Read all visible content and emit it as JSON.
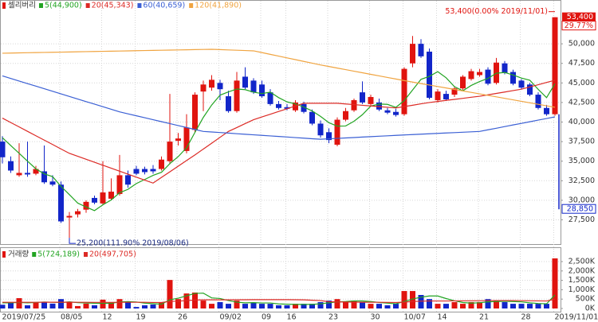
{
  "chart_data": [
    {
      "type": "candlestick",
      "name": "셀리버리",
      "up_color": "#e0140f",
      "down_color": "#1226c9",
      "open": [
        37500,
        35000,
        33200,
        33500,
        33400,
        33700,
        32400,
        32000,
        27800,
        28200,
        28800,
        30300,
        29600,
        30200,
        30800,
        33200,
        34000,
        34000,
        34000,
        34000,
        35000,
        37600,
        36300,
        39000,
        43900,
        44400,
        45000,
        43300,
        41400,
        45800,
        45300,
        44800,
        43800,
        42300,
        41900,
        41500,
        42300,
        41300,
        39800,
        38700,
        37100,
        40300,
        41500,
        43800,
        42300,
        42500,
        41500,
        41300,
        41000,
        47500,
        50000,
        49000,
        42800,
        43600,
        43500,
        44300,
        45500,
        46000,
        46700,
        45000,
        47500,
        46400,
        45300,
        44800,
        43500,
        41800,
        41000
      ],
      "high": [
        38200,
        35600,
        37300,
        37500,
        34400,
        37000,
        33200,
        32400,
        28500,
        28900,
        30000,
        30600,
        35000,
        32800,
        35800,
        33800,
        34400,
        34300,
        34500,
        35600,
        43600,
        38600,
        41000,
        43800,
        45300,
        46000,
        45400,
        44000,
        46400,
        47000,
        45600,
        45300,
        44200,
        42700,
        42300,
        42800,
        42600,
        41600,
        40200,
        39200,
        40600,
        41800,
        43000,
        45200,
        43500,
        43000,
        41800,
        41700,
        47000,
        51000,
        50600,
        49400,
        44200,
        44000,
        44500,
        46000,
        46800,
        46800,
        47000,
        48200,
        47800,
        46700,
        45500,
        45000,
        43800,
        42200,
        53400
      ],
      "low": [
        34700,
        33500,
        33000,
        33000,
        33200,
        32100,
        31800,
        27100,
        25200,
        27800,
        28400,
        29500,
        29400,
        30000,
        30600,
        31600,
        33200,
        33300,
        33400,
        33800,
        34600,
        37000,
        36000,
        38700,
        41400,
        44000,
        42800,
        41200,
        41200,
        44200,
        43600,
        43100,
        42100,
        41600,
        41500,
        41300,
        41100,
        39600,
        38000,
        37300,
        36900,
        40100,
        41300,
        42300,
        42100,
        41400,
        41000,
        40700,
        40800,
        47000,
        48200,
        42900,
        42500,
        42700,
        43200,
        44100,
        45300,
        45800,
        44700,
        44800,
        46100,
        44700,
        44200,
        43300,
        41600,
        40800,
        40800
      ],
      "close": [
        35500,
        33800,
        33500,
        33300,
        34000,
        32300,
        32000,
        27300,
        28000,
        28600,
        29800,
        29700,
        31000,
        31100,
        33200,
        32000,
        33400,
        33600,
        33700,
        35200,
        37500,
        37900,
        39300,
        43500,
        44800,
        45400,
        44200,
        41400,
        45300,
        44400,
        43800,
        43300,
        42300,
        41800,
        41700,
        42500,
        41300,
        39800,
        38300,
        37700,
        40300,
        41400,
        42800,
        42500,
        43200,
        41600,
        41200,
        40900,
        46800,
        50000,
        48400,
        43100,
        43900,
        42900,
        44300,
        45800,
        46500,
        46400,
        44900,
        47600,
        46300,
        44900,
        44400,
        43500,
        41800,
        41000,
        53400
      ],
      "series": [
        {
          "name": "5(44,900)",
          "color": "#22a422",
          "values": [
            38000,
            37000,
            36000,
            35000,
            34020,
            33380,
            33020,
            31780,
            30720,
            29640,
            29140,
            28680,
            29420,
            30040,
            30960,
            31400,
            32140,
            32660,
            33180,
            33580,
            34680,
            35580,
            36720,
            38680,
            40600,
            42180,
            43440,
            43860,
            44220,
            44140,
            43820,
            43640,
            43820,
            43120,
            42580,
            42320,
            41920,
            41420,
            40720,
            39920,
            39480,
            39500,
            40100,
            40940,
            42040,
            42300,
            42260,
            41880,
            42740,
            44100,
            45460,
            45840,
            46440,
            45660,
            44520,
            44000,
            44680,
            45180,
            45580,
            46240,
            46340,
            46020,
            45620,
            45340,
            44180,
            43120,
            44900
          ]
        },
        {
          "name": "20(45,343)",
          "color": "#dc2a25",
          "values": [
            40500,
            39940,
            39380,
            38810,
            38250,
            37690,
            37130,
            36560,
            36000,
            35620,
            35240,
            34860,
            34480,
            34100,
            33720,
            33340,
            32960,
            32580,
            32200,
            32920,
            33640,
            34360,
            35080,
            35800,
            36550,
            37300,
            38050,
            38800,
            39300,
            39800,
            40300,
            40650,
            41000,
            41350,
            41700,
            42050,
            42400,
            42400,
            42400,
            42400,
            42400,
            42310,
            42230,
            42140,
            42060,
            41970,
            41890,
            41800,
            41980,
            42150,
            42330,
            42500,
            42630,
            42770,
            42900,
            43030,
            43170,
            43300,
            43480,
            43660,
            43840,
            44020,
            44200,
            44490,
            44770,
            45060,
            45343
          ]
        },
        {
          "name": "60(40,659)",
          "color": "#3a5fd4",
          "values": [
            45900,
            45570,
            45240,
            44910,
            44590,
            44260,
            43930,
            43600,
            43270,
            42940,
            42610,
            42290,
            41960,
            41630,
            41300,
            41050,
            40800,
            40550,
            40300,
            40050,
            39800,
            39550,
            39300,
            39050,
            38800,
            38730,
            38660,
            38590,
            38510,
            38440,
            38370,
            38300,
            38230,
            38160,
            38090,
            38010,
            37940,
            37870,
            37800,
            37860,
            37910,
            37970,
            38020,
            38080,
            38130,
            38190,
            38240,
            38300,
            38350,
            38400,
            38450,
            38500,
            38550,
            38600,
            38650,
            38700,
            38750,
            38800,
            39010,
            39210,
            39420,
            39630,
            39830,
            40040,
            40250,
            40450,
            40659
          ]
        },
        {
          "name": "120(41,890)",
          "color": "#f0a440",
          "values": [
            48800,
            48820,
            48840,
            48860,
            48880,
            48900,
            48920,
            48940,
            48960,
            48980,
            49000,
            49020,
            49040,
            49060,
            49080,
            49100,
            49120,
            49140,
            49160,
            49180,
            49200,
            49220,
            49240,
            49260,
            49280,
            49300,
            49260,
            49220,
            49180,
            49140,
            49100,
            48880,
            48650,
            48430,
            48200,
            47980,
            47750,
            47530,
            47300,
            47100,
            46900,
            46700,
            46500,
            46300,
            46100,
            45900,
            45700,
            45500,
            45300,
            45110,
            44920,
            44730,
            44540,
            44360,
            44170,
            43980,
            43790,
            43600,
            43410,
            43220,
            43030,
            42840,
            42650,
            42460,
            42270,
            42080,
            41890
          ]
        }
      ],
      "ylim": [
        24400,
        55500
      ],
      "yticks": [
        {
          "value": 27500,
          "label": "27,500"
        },
        {
          "value": 30000,
          "label": "30,000"
        },
        {
          "value": 32500,
          "label": "32,500"
        },
        {
          "value": 35000,
          "label": "35,000"
        },
        {
          "value": 37500,
          "label": "37,500"
        },
        {
          "value": 40000,
          "label": "40,000"
        },
        {
          "value": 42500,
          "label": "42,500"
        },
        {
          "value": 45000,
          "label": "45,000"
        },
        {
          "value": 47500,
          "label": "47,500"
        },
        {
          "value": 50000,
          "label": "50,000"
        }
      ],
      "grid": true,
      "max_label": "53,400(0.00% 2019/11/01)",
      "min_label": "25,200(111.90% 2019/08/06)",
      "last": {
        "value": 53400,
        "label": "53,400"
      },
      "change": "29.77%",
      "lower_limit": {
        "value": 28850,
        "label": "28,850"
      }
    },
    {
      "type": "bar",
      "name": "거래량",
      "categories": [
        "2019/07/25",
        null,
        null,
        null,
        null,
        null,
        null,
        "08/05",
        null,
        null,
        null,
        null,
        "12",
        null,
        null,
        null,
        "19",
        null,
        null,
        null,
        null,
        "26",
        null,
        null,
        null,
        null,
        "09/02",
        null,
        null,
        null,
        null,
        "09",
        null,
        null,
        "16",
        null,
        null,
        null,
        null,
        "23",
        null,
        null,
        null,
        null,
        "30",
        null,
        null,
        null,
        "10/07",
        null,
        null,
        null,
        "14",
        null,
        null,
        null,
        null,
        "21",
        null,
        null,
        null,
        null,
        "28",
        null,
        null,
        null,
        "2019/11/01"
      ],
      "values": [
        200000,
        340000,
        550000,
        170000,
        340000,
        330000,
        260000,
        500000,
        340000,
        130000,
        260000,
        170000,
        470000,
        340000,
        500000,
        340000,
        80000,
        170000,
        210000,
        340000,
        1520000,
        500000,
        800000,
        850000,
        420000,
        250000,
        340000,
        250000,
        420000,
        250000,
        300000,
        250000,
        250000,
        170000,
        170000,
        250000,
        250000,
        250000,
        340000,
        420000,
        500000,
        340000,
        420000,
        340000,
        250000,
        250000,
        170000,
        250000,
        930000,
        930000,
        720000,
        500000,
        250000,
        250000,
        340000,
        250000,
        340000,
        340000,
        500000,
        420000,
        340000,
        250000,
        250000,
        250000,
        250000,
        250000,
        2670000
      ],
      "series": [
        {
          "name": "5(724,189)",
          "color": "#22a422",
          "values": [
            300000,
            300000,
            320000,
            300000,
            320000,
            346000,
            330000,
            320000,
            354000,
            312000,
            298000,
            280000,
            274000,
            274000,
            348000,
            364000,
            346000,
            286000,
            260000,
            228000,
            464000,
            548000,
            674000,
            802000,
            818000,
            564000,
            532000,
            422000,
            336000,
            302000,
            312000,
            294000,
            294000,
            244000,
            228000,
            218000,
            218000,
            218000,
            252000,
            302000,
            352000,
            370000,
            404000,
            404000,
            370000,
            320000,
            286000,
            252000,
            370000,
            506000,
            600000,
            666000,
            666000,
            530000,
            412000,
            318000,
            286000,
            304000,
            354000,
            370000,
            388000,
            370000,
            352000,
            302000,
            268000,
            250000,
            724189
          ]
        },
        {
          "name": "20(497,705)",
          "color": "#dc2a25",
          "values": [
            330000,
            330000,
            330000,
            330000,
            330000,
            335000,
            335000,
            335000,
            335000,
            330000,
            330000,
            325000,
            325000,
            325000,
            330000,
            330000,
            330000,
            330000,
            320000,
            320000,
            380000,
            390000,
            420000,
            450000,
            460000,
            460000,
            460000,
            460000,
            465000,
            465000,
            470000,
            470000,
            470000,
            470000,
            470000,
            465000,
            460000,
            440000,
            420000,
            360000,
            350000,
            345000,
            340000,
            335000,
            330000,
            330000,
            325000,
            320000,
            340000,
            370000,
            390000,
            400000,
            400000,
            400000,
            405000,
            405000,
            410000,
            410000,
            420000,
            420000,
            420000,
            420000,
            415000,
            410000,
            405000,
            400000,
            497705
          ]
        }
      ],
      "ylim": [
        0,
        3220000
      ],
      "yticks": [
        {
          "value": 0,
          "label": "0K"
        },
        {
          "value": 500000,
          "label": "500K"
        },
        {
          "value": 1000000,
          "label": "1,000K"
        },
        {
          "value": 1500000,
          "label": "1,500K"
        },
        {
          "value": 2000000,
          "label": "2,000K"
        },
        {
          "value": 2500000,
          "label": "2,500K"
        }
      ],
      "grid": true
    }
  ]
}
